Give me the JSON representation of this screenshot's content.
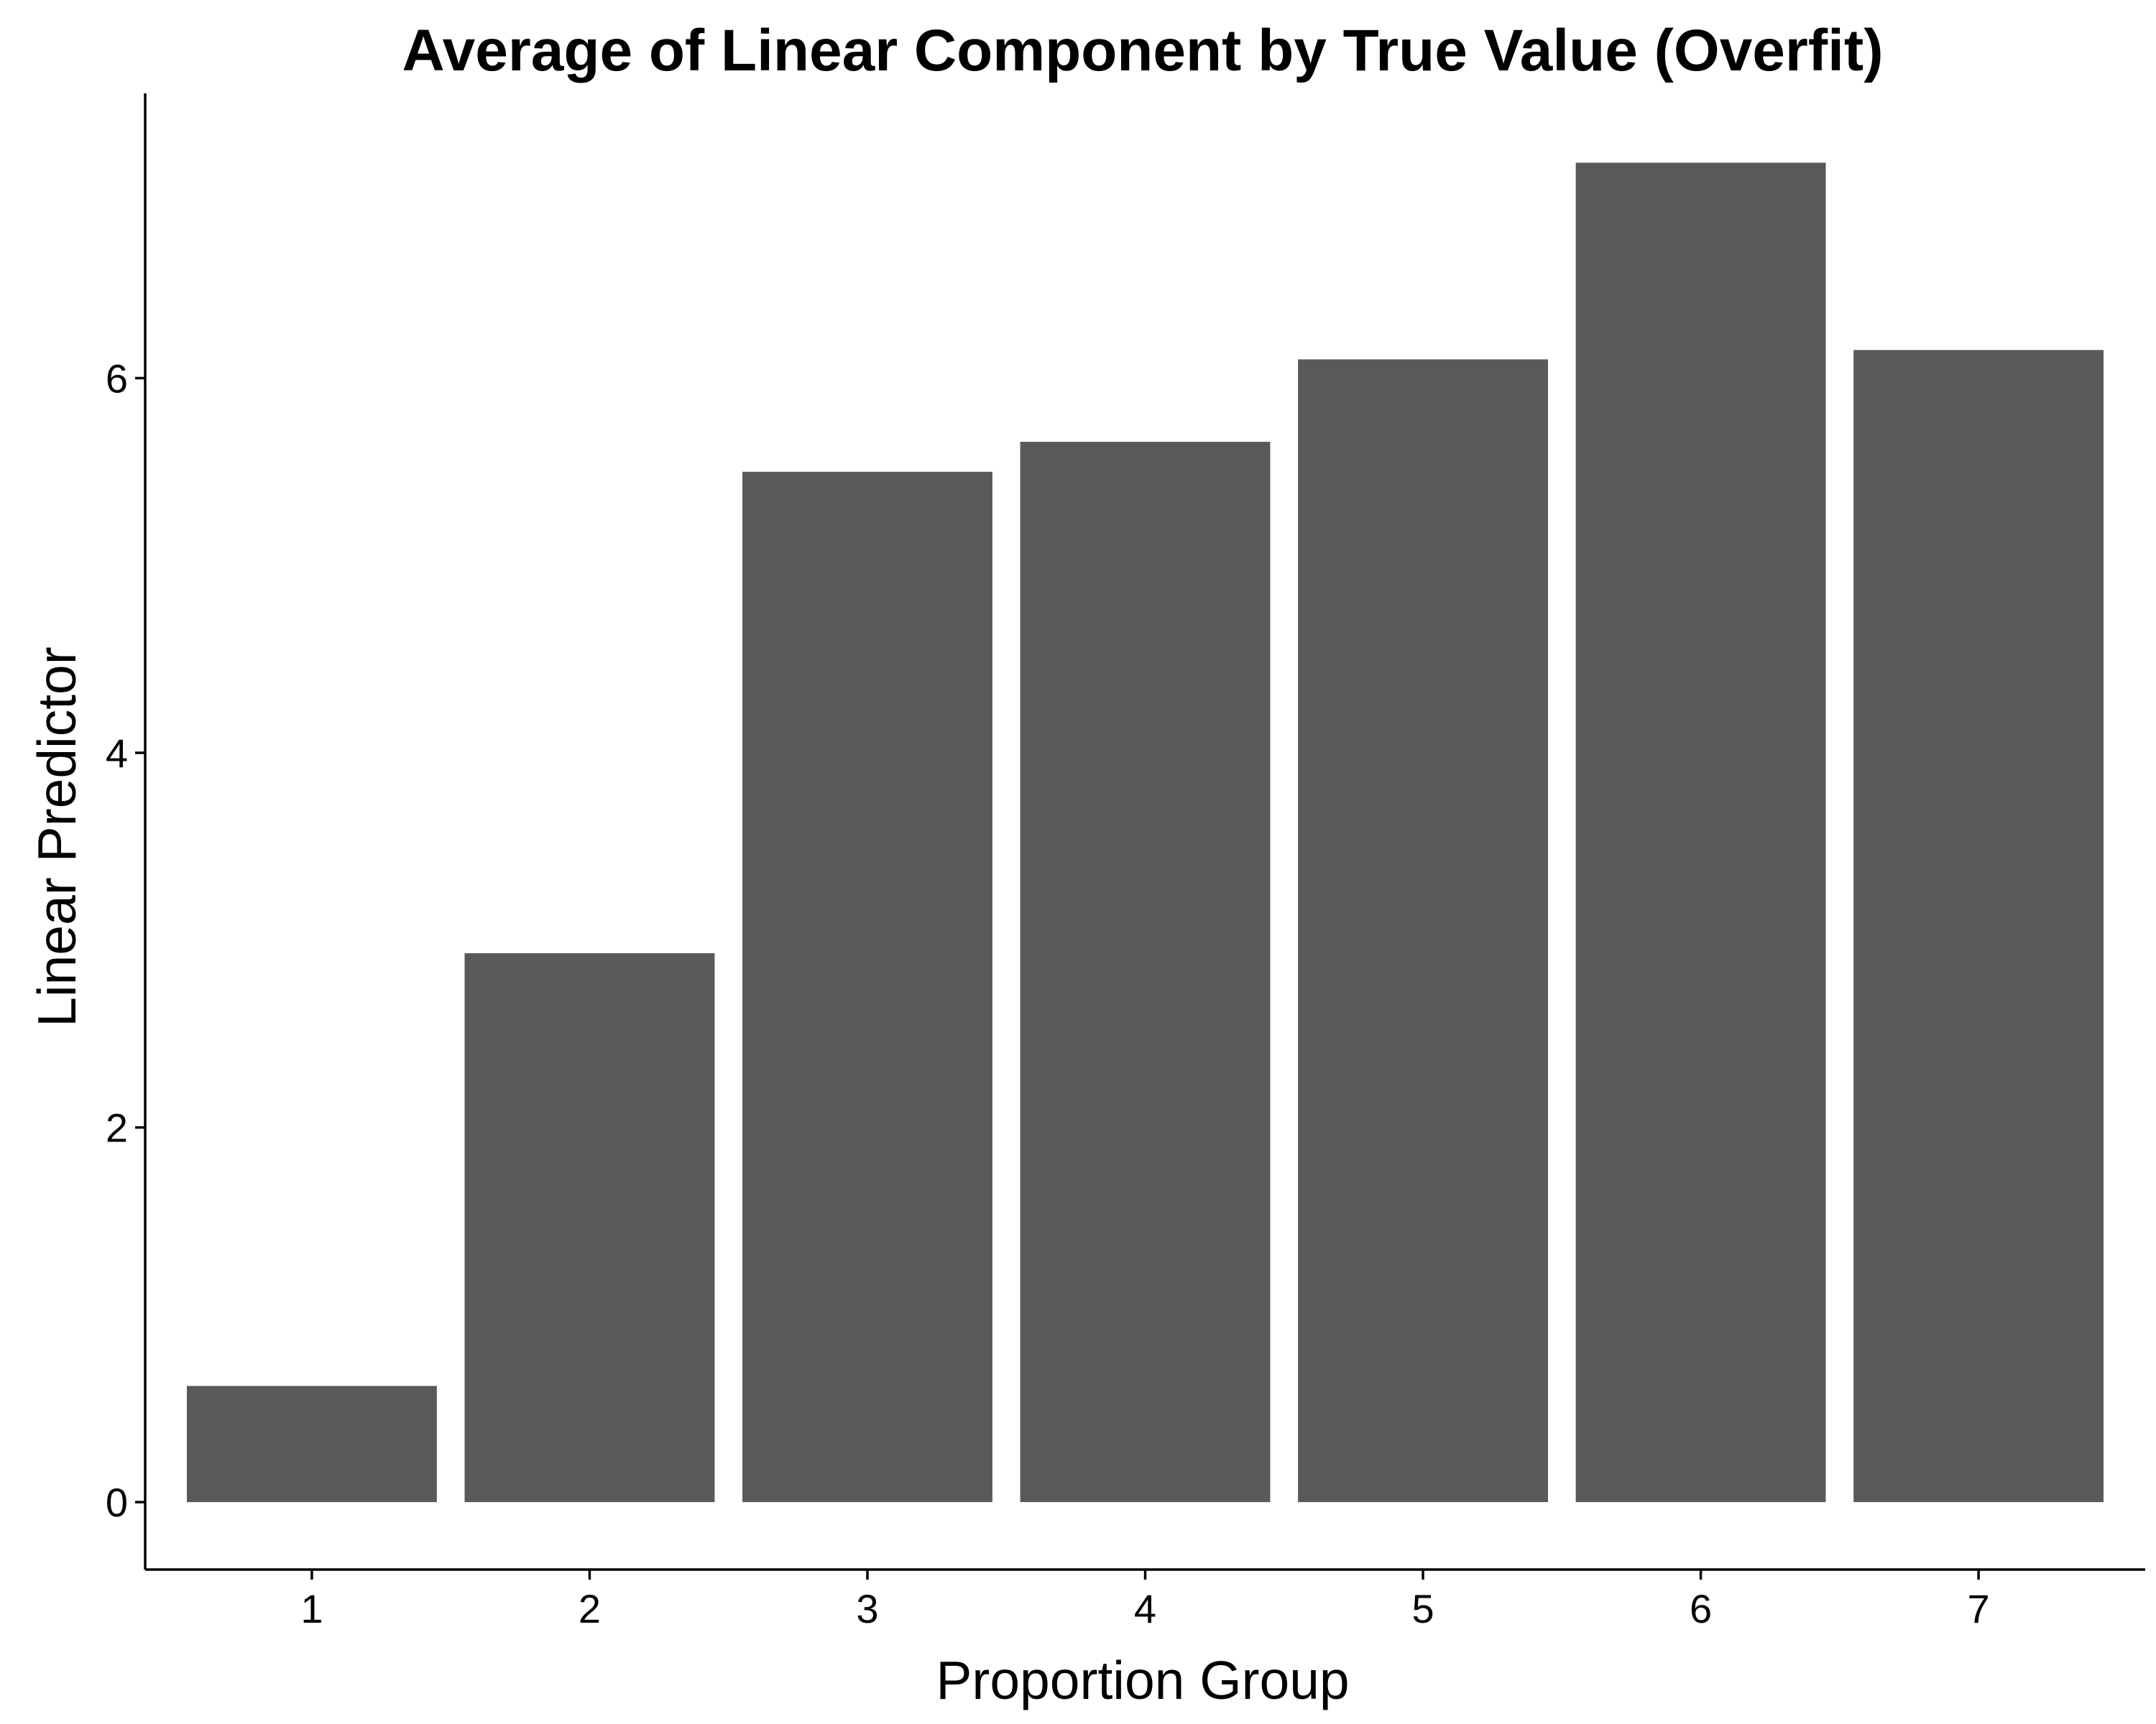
{
  "chart_data": {
    "type": "bar",
    "title": "Average of Linear Component by True Value (Overfit)",
    "xlabel": "Proportion Group",
    "ylabel": "Linear Predictor",
    "categories": [
      "1",
      "2",
      "3",
      "4",
      "5",
      "6",
      "7"
    ],
    "values": [
      0.62,
      2.93,
      5.5,
      5.66,
      6.1,
      7.15,
      6.15
    ],
    "ylim": [
      -0.36,
      7.52
    ],
    "yticks": [
      0,
      2,
      4,
      6
    ],
    "grid": false,
    "legend": "none",
    "colors": {
      "bar": "#595959",
      "axis": "#000000",
      "background": "#ffffff"
    }
  }
}
